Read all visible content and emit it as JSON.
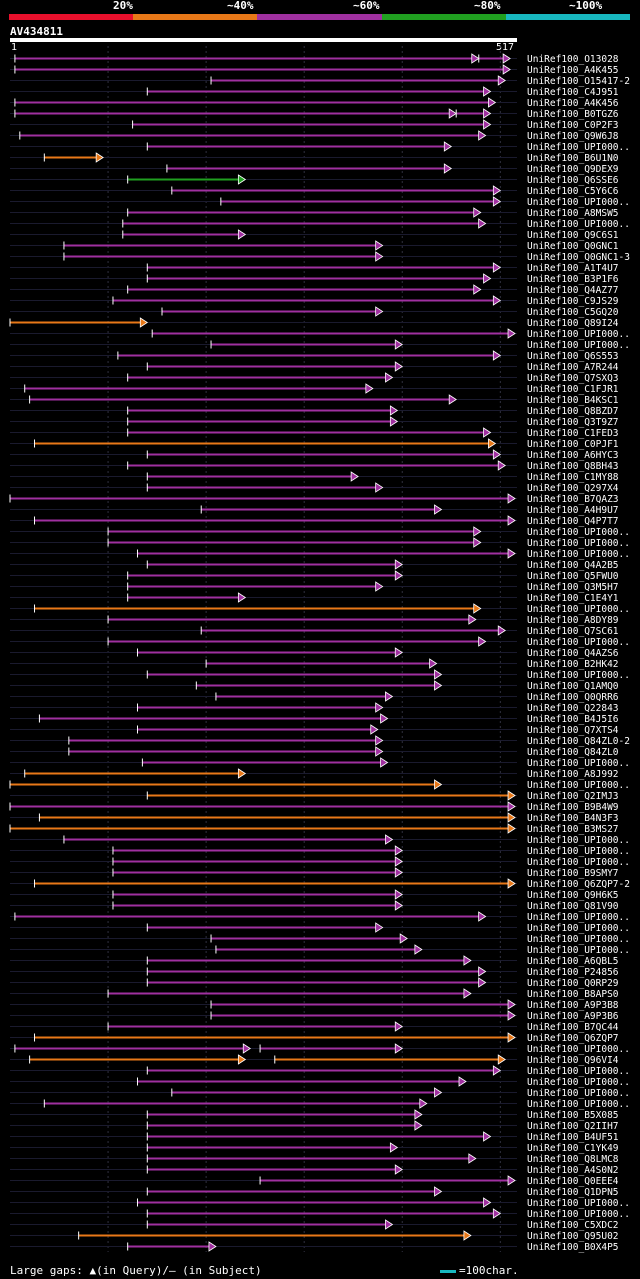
{
  "legend": [
    {
      "label": "20%",
      "color": "#e8102c"
    },
    {
      "label": "~40%",
      "color": "#e87818"
    },
    {
      "label": "~60%",
      "color": "#a030a0"
    },
    {
      "label": "~80%",
      "color": "#20a020"
    },
    {
      "label": "~100%",
      "color": "#18b8c0"
    }
  ],
  "query": {
    "name": "AV434811",
    "start": "1",
    "end": "517"
  },
  "footer": {
    "gaps_text": "Large gaps: ▲(in Query)/– (in Subject)",
    "scale_text": "=100char."
  },
  "colors": {
    "magenta": "#a030a0",
    "orange": "#e87818",
    "green": "#20a020",
    "bg": "#000000",
    "grid": "#303040"
  },
  "chart_data": {
    "type": "alignment",
    "title": "AV434811",
    "query_length": 517,
    "gridlines": [
      100,
      200,
      300,
      400,
      500
    ],
    "hits": [
      {
        "label": "UniRef100_O13028",
        "color": "magenta",
        "segs": [
          [
            5,
            478
          ],
          [
            478,
            510
          ]
        ]
      },
      {
        "label": "UniRef100_A4K455",
        "color": "magenta",
        "segs": [
          [
            5,
            510
          ]
        ]
      },
      {
        "label": "UniRef100_O15417-2",
        "color": "magenta",
        "segs": [
          [
            205,
            505
          ]
        ]
      },
      {
        "label": "UniRef100_C4J951",
        "color": "magenta",
        "segs": [
          [
            140,
            490
          ]
        ]
      },
      {
        "label": "UniRef100_A4K456",
        "color": "magenta",
        "segs": [
          [
            5,
            495
          ]
        ]
      },
      {
        "label": "UniRef100_B0TGZ6",
        "color": "magenta",
        "segs": [
          [
            5,
            455
          ],
          [
            455,
            490
          ]
        ]
      },
      {
        "label": "UniRef100_C0P2F3",
        "color": "magenta",
        "segs": [
          [
            125,
            490
          ]
        ]
      },
      {
        "label": "UniRef100_Q9W6J8",
        "color": "magenta",
        "segs": [
          [
            10,
            485
          ]
        ]
      },
      {
        "label": "UniRef100_UPI000..",
        "color": "magenta",
        "segs": [
          [
            140,
            450
          ]
        ]
      },
      {
        "label": "UniRef100_B6U1N0",
        "color": "orange",
        "segs": [
          [
            35,
            95
          ]
        ]
      },
      {
        "label": "UniRef100_Q9DEX9",
        "color": "magenta",
        "segs": [
          [
            160,
            450
          ]
        ]
      },
      {
        "label": "UniRef100_Q6SSE6",
        "color": "green",
        "segs": [
          [
            120,
            240
          ]
        ]
      },
      {
        "label": "UniRef100_C5Y6C6",
        "color": "magenta",
        "segs": [
          [
            165,
            500
          ]
        ]
      },
      {
        "label": "UniRef100_UPI000..",
        "color": "magenta",
        "segs": [
          [
            215,
            500
          ]
        ]
      },
      {
        "label": "UniRef100_A8MSW5",
        "color": "magenta",
        "segs": [
          [
            120,
            480
          ]
        ]
      },
      {
        "label": "UniRef100_UPI000..",
        "color": "magenta",
        "segs": [
          [
            115,
            485
          ]
        ]
      },
      {
        "label": "UniRef100_Q9C6S1",
        "color": "magenta",
        "segs": [
          [
            115,
            240
          ]
        ]
      },
      {
        "label": "UniRef100_Q0GNC1",
        "color": "magenta",
        "segs": [
          [
            55,
            380
          ]
        ]
      },
      {
        "label": "UniRef100_Q0GNC1-3",
        "color": "magenta",
        "segs": [
          [
            55,
            380
          ]
        ]
      },
      {
        "label": "UniRef100_A1T4U7",
        "color": "magenta",
        "segs": [
          [
            140,
            500
          ]
        ]
      },
      {
        "label": "UniRef100_B3P1F6",
        "color": "magenta",
        "segs": [
          [
            140,
            490
          ]
        ]
      },
      {
        "label": "UniRef100_Q4AZ77",
        "color": "magenta",
        "segs": [
          [
            120,
            480
          ]
        ]
      },
      {
        "label": "UniRef100_C9JS29",
        "color": "magenta",
        "segs": [
          [
            105,
            500
          ]
        ]
      },
      {
        "label": "UniRef100_C5GQ20",
        "color": "magenta",
        "segs": [
          [
            155,
            380
          ]
        ]
      },
      {
        "label": "UniRef100_Q89I24",
        "color": "orange",
        "segs": [
          [
            0,
            140
          ]
        ]
      },
      {
        "label": "UniRef100_UPI000..",
        "color": "magenta",
        "segs": [
          [
            145,
            515
          ]
        ]
      },
      {
        "label": "UniRef100_UPI000..",
        "color": "magenta",
        "segs": [
          [
            205,
            400
          ]
        ]
      },
      {
        "label": "UniRef100_Q6S553",
        "color": "magenta",
        "segs": [
          [
            110,
            500
          ]
        ]
      },
      {
        "label": "UniRef100_A7R244",
        "color": "magenta",
        "segs": [
          [
            140,
            400
          ]
        ]
      },
      {
        "label": "UniRef100_Q7SXQ3",
        "color": "magenta",
        "segs": [
          [
            120,
            390
          ]
        ]
      },
      {
        "label": "UniRef100_C1FJR1",
        "color": "magenta",
        "segs": [
          [
            15,
            370
          ]
        ]
      },
      {
        "label": "UniRef100_B4KSC1",
        "color": "magenta",
        "segs": [
          [
            20,
            455
          ]
        ]
      },
      {
        "label": "UniRef100_Q8BZD7",
        "color": "magenta",
        "segs": [
          [
            120,
            395
          ]
        ]
      },
      {
        "label": "UniRef100_Q3T9Z7",
        "color": "magenta",
        "segs": [
          [
            120,
            395
          ]
        ]
      },
      {
        "label": "UniRef100_C1FED3",
        "color": "magenta",
        "segs": [
          [
            120,
            490
          ]
        ]
      },
      {
        "label": "UniRef100_C0PJF1",
        "color": "orange",
        "segs": [
          [
            25,
            495
          ]
        ]
      },
      {
        "label": "UniRef100_A6HYC3",
        "color": "magenta",
        "segs": [
          [
            140,
            500
          ]
        ]
      },
      {
        "label": "UniRef100_Q8BH43",
        "color": "magenta",
        "segs": [
          [
            120,
            505
          ]
        ]
      },
      {
        "label": "UniRef100_C1MY88",
        "color": "magenta",
        "segs": [
          [
            140,
            355
          ]
        ]
      },
      {
        "label": "UniRef100_Q297X4",
        "color": "magenta",
        "segs": [
          [
            140,
            380
          ]
        ]
      },
      {
        "label": "UniRef100_B7QAZ3",
        "color": "magenta",
        "segs": [
          [
            0,
            515
          ]
        ]
      },
      {
        "label": "UniRef100_A4H9U7",
        "color": "magenta",
        "segs": [
          [
            195,
            440
          ]
        ]
      },
      {
        "label": "UniRef100_Q4P7T7",
        "color": "magenta",
        "segs": [
          [
            25,
            515
          ]
        ]
      },
      {
        "label": "UniRef100_UPI000..",
        "color": "magenta",
        "segs": [
          [
            100,
            480
          ]
        ]
      },
      {
        "label": "UniRef100_UPI000..",
        "color": "magenta",
        "segs": [
          [
            100,
            480
          ]
        ]
      },
      {
        "label": "UniRef100_UPI000..",
        "color": "magenta",
        "segs": [
          [
            130,
            515
          ]
        ]
      },
      {
        "label": "UniRef100_Q4A2B5",
        "color": "magenta",
        "segs": [
          [
            140,
            400
          ]
        ]
      },
      {
        "label": "UniRef100_Q5FWU0",
        "color": "magenta",
        "segs": [
          [
            120,
            400
          ]
        ]
      },
      {
        "label": "UniRef100_Q3M5H7",
        "color": "magenta",
        "segs": [
          [
            120,
            380
          ]
        ]
      },
      {
        "label": "UniRef100_C1E4Y1",
        "color": "magenta",
        "segs": [
          [
            120,
            240
          ]
        ]
      },
      {
        "label": "UniRef100_UPI000..",
        "color": "orange",
        "segs": [
          [
            25,
            480
          ]
        ]
      },
      {
        "label": "UniRef100_A8DY89",
        "color": "magenta",
        "segs": [
          [
            100,
            475
          ]
        ]
      },
      {
        "label": "UniRef100_Q7SC61",
        "color": "magenta",
        "segs": [
          [
            195,
            505
          ]
        ]
      },
      {
        "label": "UniRef100_UPI000..",
        "color": "magenta",
        "segs": [
          [
            100,
            485
          ]
        ]
      },
      {
        "label": "UniRef100_Q4AZS6",
        "color": "magenta",
        "segs": [
          [
            130,
            400
          ]
        ]
      },
      {
        "label": "UniRef100_B2HK42",
        "color": "magenta",
        "segs": [
          [
            200,
            435
          ]
        ]
      },
      {
        "label": "UniRef100_UPI000..",
        "color": "magenta",
        "segs": [
          [
            140,
            440
          ]
        ]
      },
      {
        "label": "UniRef100_Q1AMQ0",
        "color": "magenta",
        "segs": [
          [
            190,
            440
          ]
        ]
      },
      {
        "label": "UniRef100_Q0QRR6",
        "color": "magenta",
        "segs": [
          [
            210,
            390
          ]
        ]
      },
      {
        "label": "UniRef100_Q22843",
        "color": "magenta",
        "segs": [
          [
            130,
            380
          ]
        ]
      },
      {
        "label": "UniRef100_B4J5I6",
        "color": "magenta",
        "segs": [
          [
            30,
            385
          ]
        ]
      },
      {
        "label": "UniRef100_Q7XTS4",
        "color": "magenta",
        "segs": [
          [
            130,
            375
          ]
        ]
      },
      {
        "label": "UniRef100_Q84ZL0-2",
        "color": "magenta",
        "segs": [
          [
            60,
            380
          ]
        ]
      },
      {
        "label": "UniRef100_Q84ZL0",
        "color": "magenta",
        "segs": [
          [
            60,
            380
          ]
        ]
      },
      {
        "label": "UniRef100_UPI000..",
        "color": "magenta",
        "segs": [
          [
            135,
            385
          ]
        ]
      },
      {
        "label": "UniRef100_A8J992",
        "color": "orange",
        "segs": [
          [
            15,
            240
          ]
        ]
      },
      {
        "label": "UniRef100_UPI000..",
        "color": "orange",
        "segs": [
          [
            0,
            440
          ]
        ]
      },
      {
        "label": "UniRef100_Q2IMJ3",
        "color": "orange",
        "segs": [
          [
            140,
            515
          ]
        ]
      },
      {
        "label": "UniRef100_B9B4W9",
        "color": "magenta",
        "segs": [
          [
            0,
            515
          ]
        ]
      },
      {
        "label": "UniRef100_B4N3F3",
        "color": "orange",
        "segs": [
          [
            30,
            515
          ]
        ]
      },
      {
        "label": "UniRef100_B3MS27",
        "color": "orange",
        "segs": [
          [
            0,
            515
          ]
        ]
      },
      {
        "label": "UniRef100_UPI000..",
        "color": "magenta",
        "segs": [
          [
            55,
            390
          ]
        ]
      },
      {
        "label": "UniRef100_UPI000..",
        "color": "magenta",
        "segs": [
          [
            105,
            400
          ]
        ]
      },
      {
        "label": "UniRef100_UPI000..",
        "color": "magenta",
        "segs": [
          [
            105,
            400
          ]
        ]
      },
      {
        "label": "UniRef100_B9SMY7",
        "color": "magenta",
        "segs": [
          [
            105,
            400
          ]
        ]
      },
      {
        "label": "UniRef100_Q6ZQP7-2",
        "color": "orange",
        "segs": [
          [
            25,
            515
          ]
        ]
      },
      {
        "label": "UniRef100_Q9H6K5",
        "color": "magenta",
        "segs": [
          [
            105,
            400
          ]
        ]
      },
      {
        "label": "UniRef100_Q81V90",
        "color": "magenta",
        "segs": [
          [
            105,
            400
          ]
        ]
      },
      {
        "label": "UniRef100_UPI000..",
        "color": "magenta",
        "segs": [
          [
            5,
            485
          ]
        ]
      },
      {
        "label": "UniRef100_UPI000..",
        "color": "magenta",
        "segs": [
          [
            140,
            380
          ]
        ]
      },
      {
        "label": "UniRef100_UPI000..",
        "color": "magenta",
        "segs": [
          [
            205,
            405
          ]
        ]
      },
      {
        "label": "UniRef100_UPI000..",
        "color": "magenta",
        "segs": [
          [
            210,
            420
          ]
        ]
      },
      {
        "label": "UniRef100_A6QBL5",
        "color": "magenta",
        "segs": [
          [
            140,
            470
          ]
        ]
      },
      {
        "label": "UniRef100_P24856",
        "color": "magenta",
        "segs": [
          [
            140,
            485
          ]
        ]
      },
      {
        "label": "UniRef100_Q0RP29",
        "color": "magenta",
        "segs": [
          [
            140,
            485
          ]
        ]
      },
      {
        "label": "UniRef100_B8APS0",
        "color": "magenta",
        "segs": [
          [
            100,
            470
          ]
        ]
      },
      {
        "label": "UniRef100_A9P3B8",
        "color": "magenta",
        "segs": [
          [
            205,
            515
          ]
        ]
      },
      {
        "label": "UniRef100_A9P3B6",
        "color": "magenta",
        "segs": [
          [
            205,
            515
          ]
        ]
      },
      {
        "label": "UniRef100_B7QC44",
        "color": "magenta",
        "segs": [
          [
            100,
            400
          ]
        ]
      },
      {
        "label": "UniRef100_Q6ZQP7",
        "color": "orange",
        "segs": [
          [
            25,
            515
          ]
        ]
      },
      {
        "label": "UniRef100_UPI000..",
        "color": "magenta",
        "segs": [
          [
            5,
            245
          ],
          [
            255,
            400
          ]
        ]
      },
      {
        "label": "UniRef100_Q96VI4",
        "color": "orange",
        "segs": [
          [
            20,
            240
          ],
          [
            270,
            505
          ]
        ]
      },
      {
        "label": "UniRef100_UPI000..",
        "color": "magenta",
        "segs": [
          [
            140,
            500
          ]
        ]
      },
      {
        "label": "UniRef100_UPI000..",
        "color": "magenta",
        "segs": [
          [
            130,
            465
          ]
        ]
      },
      {
        "label": "UniRef100_UPI000..",
        "color": "magenta",
        "segs": [
          [
            165,
            440
          ]
        ]
      },
      {
        "label": "UniRef100_UPI000..",
        "color": "magenta",
        "segs": [
          [
            35,
            425
          ]
        ]
      },
      {
        "label": "UniRef100_B5X085",
        "color": "magenta",
        "segs": [
          [
            140,
            420
          ]
        ]
      },
      {
        "label": "UniRef100_Q2IIH7",
        "color": "magenta",
        "segs": [
          [
            140,
            420
          ]
        ]
      },
      {
        "label": "UniRef100_B4UF51",
        "color": "magenta",
        "segs": [
          [
            140,
            490
          ]
        ]
      },
      {
        "label": "UniRef100_C1YK49",
        "color": "magenta",
        "segs": [
          [
            140,
            395
          ]
        ]
      },
      {
        "label": "UniRef100_Q8LMC8",
        "color": "magenta",
        "segs": [
          [
            140,
            475
          ]
        ]
      },
      {
        "label": "UniRef100_A4S0N2",
        "color": "magenta",
        "segs": [
          [
            140,
            400
          ]
        ]
      },
      {
        "label": "UniRef100_Q0EEE4",
        "color": "magenta",
        "segs": [
          [
            255,
            515
          ]
        ]
      },
      {
        "label": "UniRef100_Q1DPN5",
        "color": "magenta",
        "segs": [
          [
            140,
            440
          ]
        ]
      },
      {
        "label": "UniRef100_UPI000..",
        "color": "magenta",
        "segs": [
          [
            130,
            490
          ]
        ]
      },
      {
        "label": "UniRef100_UPI000..",
        "color": "magenta",
        "segs": [
          [
            140,
            500
          ]
        ]
      },
      {
        "label": "UniRef100_C5XDC2",
        "color": "magenta",
        "segs": [
          [
            140,
            390
          ]
        ]
      },
      {
        "label": "UniRef100_Q95U02",
        "color": "orange",
        "segs": [
          [
            70,
            470
          ]
        ]
      },
      {
        "label": "UniRef100_B0X4P5",
        "color": "magenta",
        "segs": [
          [
            120,
            210
          ]
        ]
      }
    ]
  }
}
